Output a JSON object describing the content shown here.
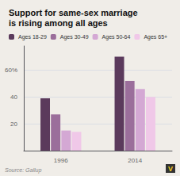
{
  "chart_data": {
    "type": "bar",
    "title": "Support for same-sex marriage\nis rising among all ages",
    "categories": [
      "1996",
      "2014"
    ],
    "series": [
      {
        "name": "Ages 18-29",
        "color": "#5b3a5c",
        "values": [
          39,
          70
        ]
      },
      {
        "name": "Ages 30-49",
        "color": "#9b6e9b",
        "values": [
          27,
          52
        ]
      },
      {
        "name": "Ages 50-64",
        "color": "#d4a8d4",
        "values": [
          15,
          46
        ]
      },
      {
        "name": "Ages 65+",
        "color": "#f0c8e8",
        "values": [
          14,
          40
        ]
      }
    ],
    "ylim": [
      0,
      78
    ],
    "yticks": [
      20,
      40,
      {
        "value": 60,
        "label": "60%"
      }
    ],
    "grid": true,
    "legend": "top",
    "annotations": [
      "Source: Gallup",
      "V"
    ]
  }
}
